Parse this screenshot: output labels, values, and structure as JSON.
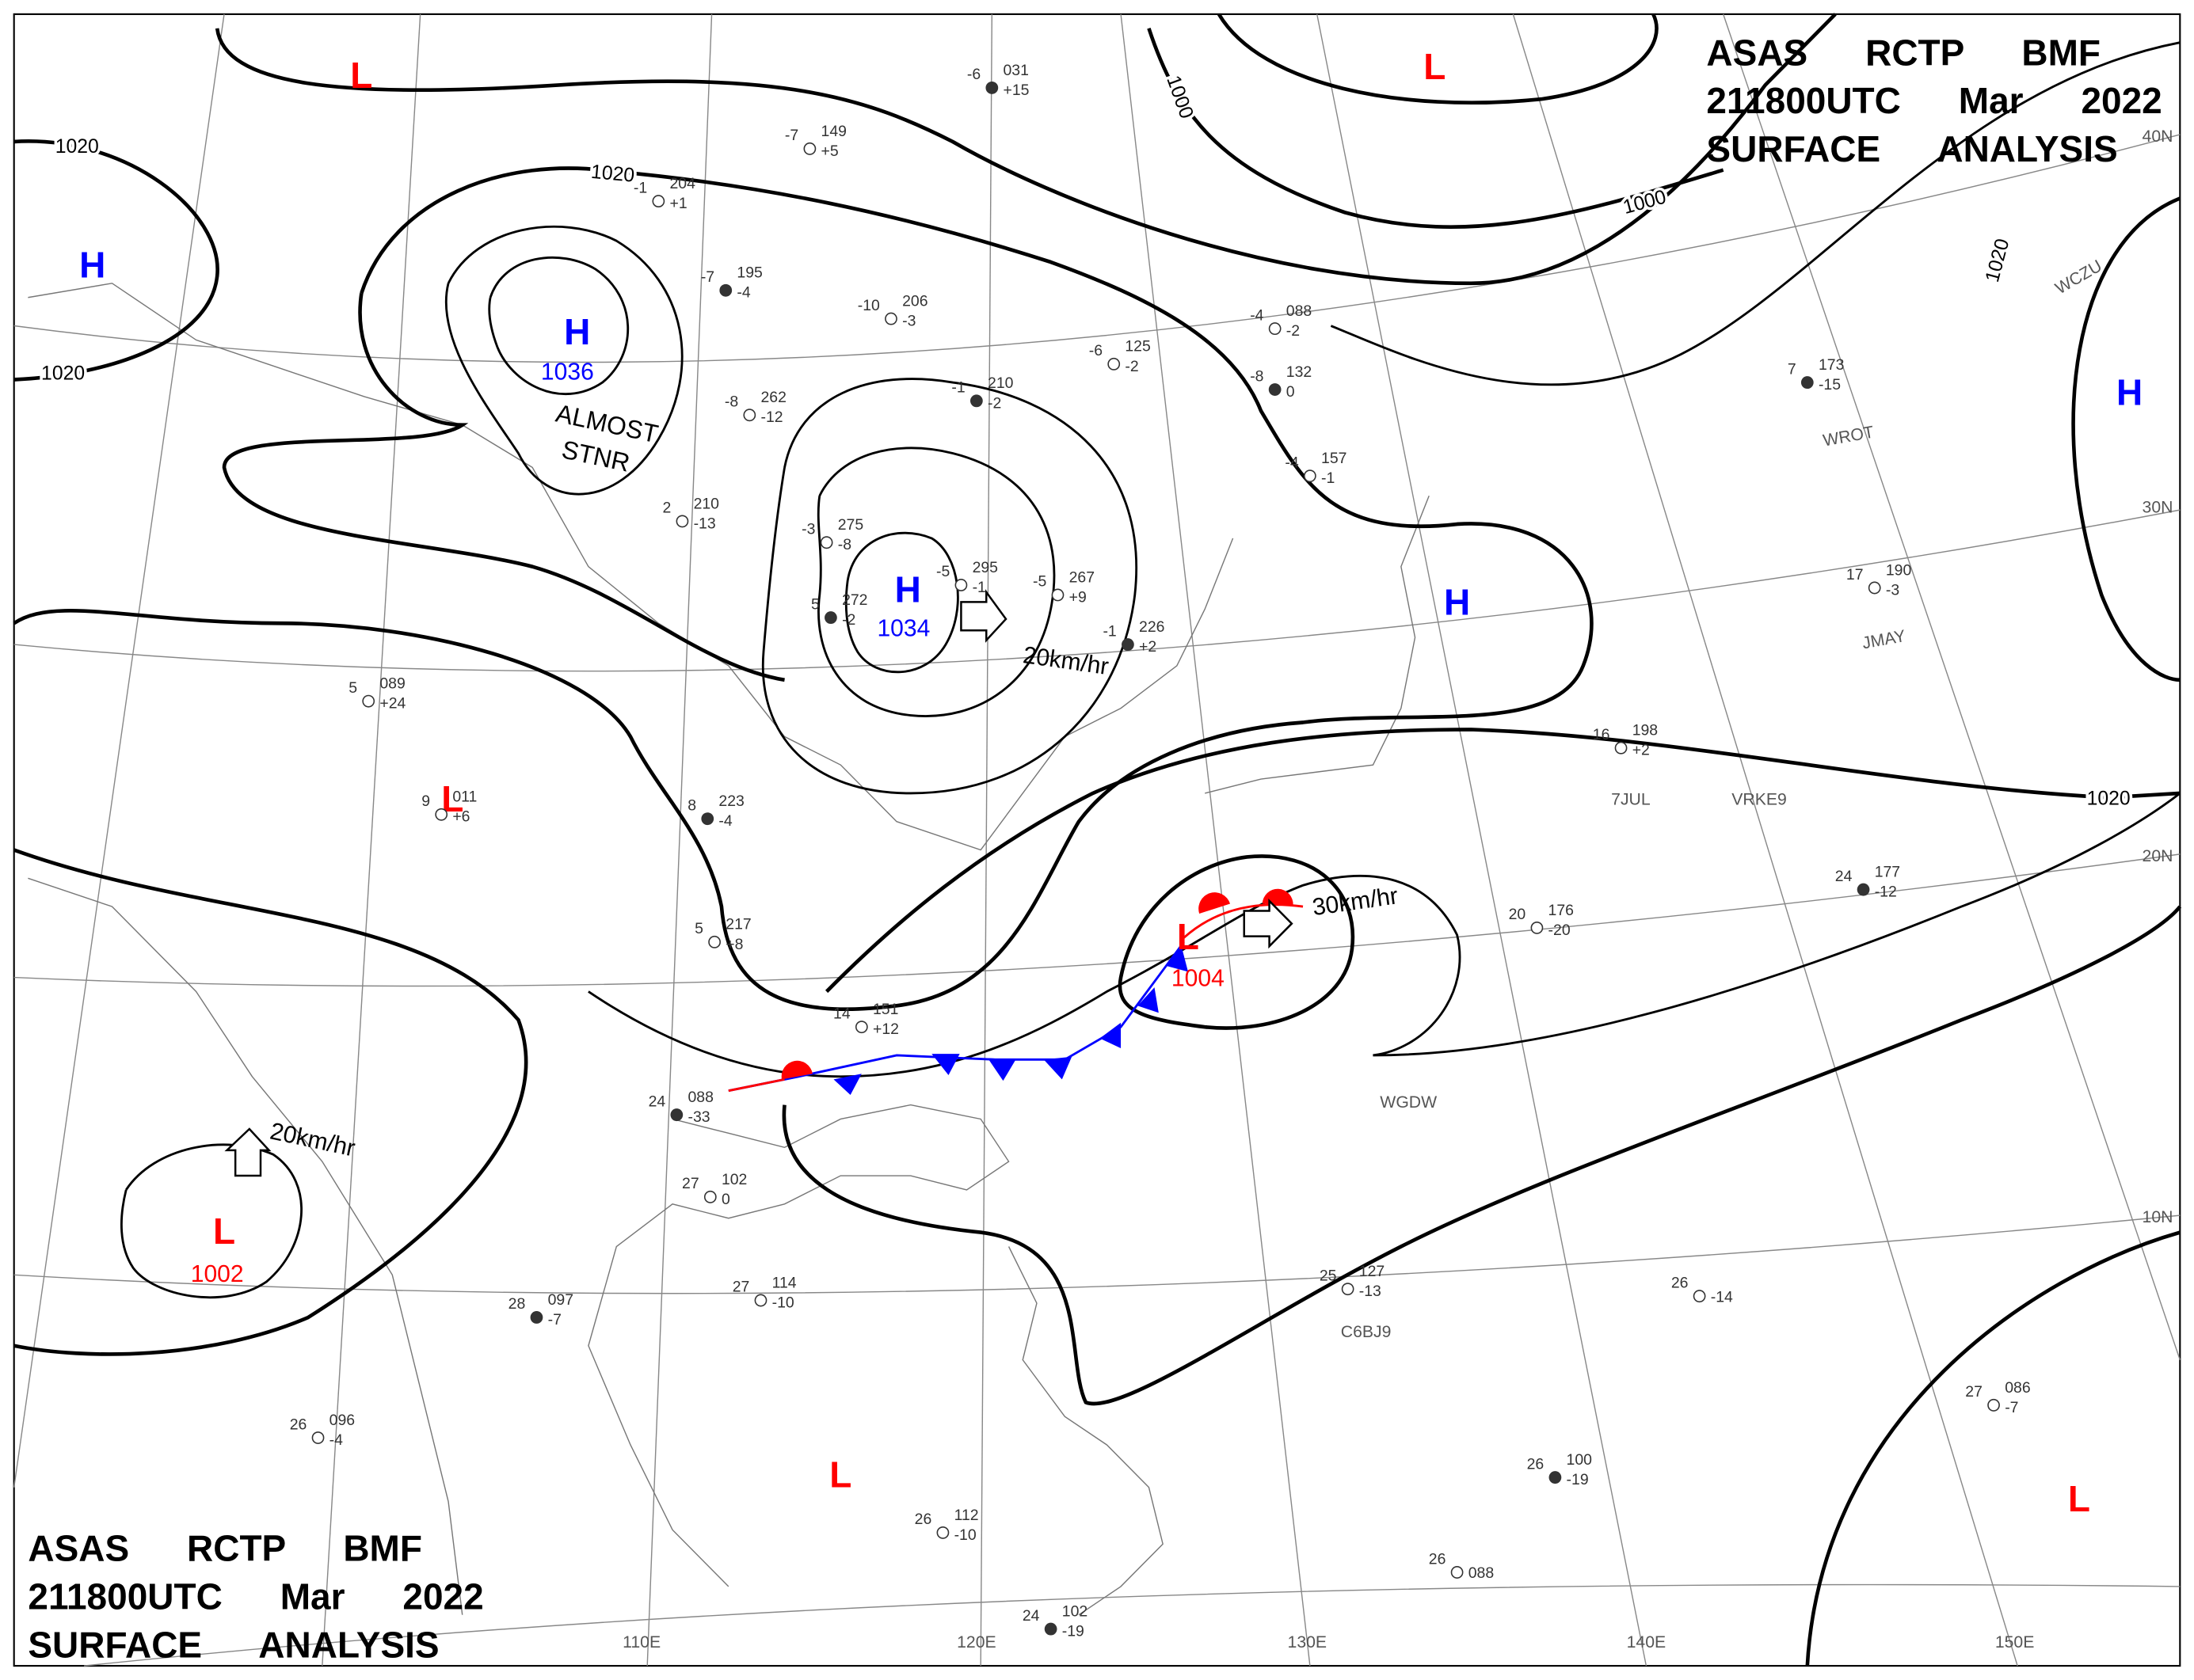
{
  "header": {
    "lines": [
      "ASAS RCTP BMF",
      "211800UTC Mar 2022",
      "SURFACE ANALYSIS"
    ]
  },
  "pressure_centers": [
    {
      "label": "H",
      "value": 1036
    },
    {
      "label": "H",
      "value": 1034
    },
    {
      "label": "L",
      "value": 1002
    },
    {
      "label": "L",
      "value": 1004
    },
    {
      "label": "L"
    },
    {
      "label": "L"
    },
    {
      "label": "H"
    },
    {
      "label": "L"
    },
    {
      "label": "H"
    },
    {
      "label": "H"
    },
    {
      "label": "L"
    },
    {
      "label": "L"
    }
  ],
  "isobar_labels": [
    1020,
    1020,
    1020,
    1000,
    1000,
    1020,
    1020
  ],
  "annotations": [
    "ALMOST",
    "STNR"
  ],
  "motions": [
    "20km/hr",
    "30km/hr",
    "20km/hr"
  ],
  "latitudes": [
    "40N",
    "30N",
    "20N",
    "10N"
  ],
  "longitudes": [
    "110E",
    "120E",
    "130E",
    "140E",
    "150E"
  ],
  "station_ids": [
    "WCZU",
    "WROT",
    "JMAY",
    "7JUL",
    "VRKE9",
    "WGDW",
    "C6BJ9"
  ],
  "stations": [
    [
      "-6",
      "031",
      "+15"
    ],
    [
      "-7",
      "149",
      "+5"
    ],
    [
      "-1",
      "204",
      "+1"
    ],
    [
      "-7",
      "195",
      "-4"
    ],
    [
      "-10",
      "206",
      "-3"
    ],
    [
      "-8",
      "262",
      "-12"
    ],
    [
      "-1",
      "210",
      "-2"
    ],
    [
      "2",
      "210",
      "-13"
    ],
    [
      "-3",
      "275",
      "-8"
    ],
    [
      "5",
      "272",
      "-2"
    ],
    [
      "-5",
      "295",
      "-1"
    ],
    [
      "-5",
      "267",
      "+9"
    ],
    [
      "-1",
      "226",
      "+2"
    ],
    [
      "5",
      "089",
      "+24"
    ],
    [
      "9",
      "011",
      "+6"
    ],
    [
      "8",
      "223",
      "-4"
    ],
    [
      "5",
      "217",
      "+8"
    ],
    [
      "14",
      "151",
      "+12"
    ],
    [
      "24",
      "088",
      "-33"
    ],
    [
      "27",
      "102",
      "0"
    ],
    [
      "27",
      "114",
      "-10"
    ],
    [
      "28",
      "097",
      "-7"
    ],
    [
      "26",
      "096",
      "-4"
    ],
    [
      "26",
      "112",
      "-10"
    ],
    [
      "24",
      "102",
      "-19"
    ],
    [
      "25",
      "127",
      "-13"
    ],
    [
      "20",
      "176",
      "-20"
    ],
    [
      "24",
      "177",
      "-12"
    ],
    [
      "16",
      "198",
      "+2"
    ],
    [
      "17",
      "190",
      "-3"
    ],
    [
      "7",
      "173",
      "-15"
    ],
    [
      "-4",
      "088",
      "-2"
    ],
    [
      "-6",
      "125",
      "-2"
    ],
    [
      "-8",
      "132",
      "0"
    ],
    [
      "-4",
      "157",
      "-1"
    ],
    [
      "27",
      "086",
      "-7"
    ],
    [
      "26",
      "100",
      "-19"
    ],
    [
      "26",
      "088"
    ],
    [
      "26",
      "-14"
    ]
  ]
}
